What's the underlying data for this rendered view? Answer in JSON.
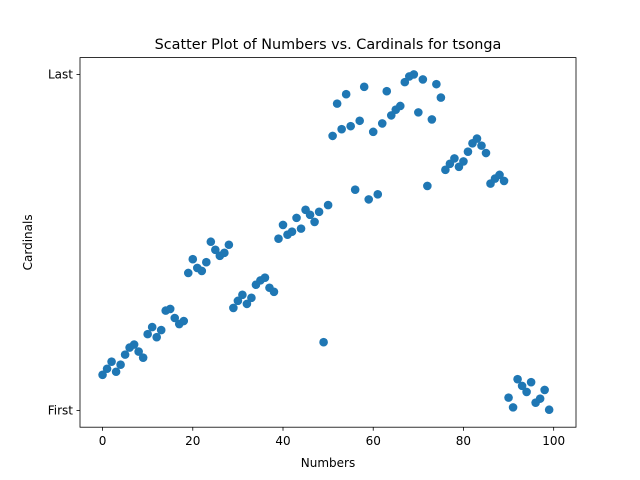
{
  "chart_data": {
    "type": "scatter",
    "title": "Scatter Plot of Numbers vs. Cardinals for tsonga",
    "xlabel": "Numbers",
    "ylabel": "Cardinals",
    "xlim": [
      -5,
      104.95
    ],
    "ylim": [
      -0.05,
      1.05
    ],
    "xticks": [
      0,
      20,
      40,
      60,
      80,
      100
    ],
    "xtick_labels": [
      "0",
      "20",
      "40",
      "60",
      "80",
      "100"
    ],
    "yticks": [
      0,
      1
    ],
    "ytick_labels": [
      "First",
      "Last"
    ],
    "grid": false,
    "marker_color": "#1f77b4",
    "x": [
      0,
      1,
      2,
      3,
      4,
      5,
      6,
      7,
      8,
      9,
      10,
      11,
      12,
      13,
      14,
      15,
      16,
      17,
      18,
      19,
      20,
      21,
      22,
      23,
      24,
      25,
      26,
      27,
      28,
      29,
      30,
      31,
      32,
      33,
      34,
      35,
      36,
      37,
      38,
      39,
      40,
      41,
      42,
      43,
      44,
      45,
      46,
      47,
      48,
      49,
      50,
      51,
      52,
      53,
      54,
      55,
      56,
      57,
      58,
      59,
      60,
      61,
      62,
      63,
      64,
      65,
      66,
      67,
      68,
      69,
      70,
      71,
      72,
      73,
      74,
      75,
      76,
      77,
      78,
      79,
      80,
      81,
      82,
      83,
      84,
      85,
      86,
      87,
      88,
      89,
      90,
      91,
      92,
      93,
      94,
      95,
      96,
      97,
      98,
      99
    ],
    "y": [
      0.106,
      0.124,
      0.145,
      0.115,
      0.136,
      0.166,
      0.187,
      0.196,
      0.175,
      0.157,
      0.227,
      0.248,
      0.218,
      0.239,
      0.297,
      0.302,
      0.275,
      0.257,
      0.266,
      0.409,
      0.45,
      0.424,
      0.415,
      0.441,
      0.502,
      0.478,
      0.46,
      0.469,
      0.493,
      0.305,
      0.326,
      0.344,
      0.317,
      0.335,
      0.374,
      0.387,
      0.395,
      0.365,
      0.353,
      0.511,
      0.552,
      0.523,
      0.532,
      0.573,
      0.541,
      0.597,
      0.582,
      0.561,
      0.591,
      0.203,
      0.611,
      0.817,
      0.913,
      0.837,
      0.941,
      0.846,
      0.657,
      0.862,
      0.963,
      0.628,
      0.829,
      0.643,
      0.854,
      0.95,
      0.878,
      0.895,
      0.906,
      0.977,
      0.994,
      1.0,
      0.887,
      0.985,
      0.668,
      0.866,
      0.971,
      0.931,
      0.716,
      0.734,
      0.75,
      0.725,
      0.741,
      0.77,
      0.795,
      0.809,
      0.788,
      0.766,
      0.675,
      0.69,
      0.701,
      0.683,
      0.038,
      0.009,
      0.093,
      0.073,
      0.055,
      0.084,
      0.023,
      0.035,
      0.061,
      0.002
    ]
  }
}
